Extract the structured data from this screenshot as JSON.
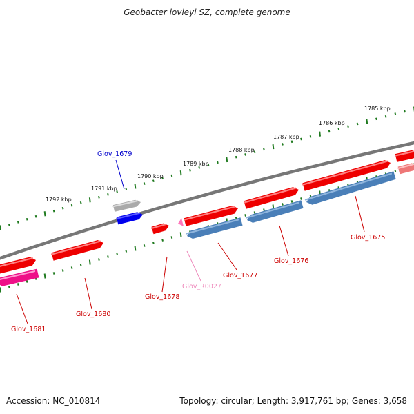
{
  "title": "Geobacter lovleyi SZ, complete genome",
  "footer": {
    "accession": "Accession: NC_010814",
    "summary": "Topology: circular; Length: 3,917,761 bp; Genes: 3,658"
  },
  "colors": {
    "backbone": "#777777",
    "tick": "#1f7a1f",
    "forward_gene": "#ee0000",
    "reverse_gene": "#4a7fb8",
    "pseudo_gene": "#aaaaaa",
    "selected_gene": "#0000ee",
    "rna_gene": "#ff77bb",
    "other_gene": "#ee1188",
    "label_default": "#cc0000",
    "label_blue": "#0000cc",
    "label_pink": "#ee88bb"
  },
  "scale": {
    "kbp_labels": [
      "1785 kbp",
      "1786 kbp",
      "1787 kbp",
      "1788 kbp",
      "1789 kbp",
      "1790 kbp",
      "1791 kbp",
      "1792 kbp"
    ]
  },
  "genes": [
    {
      "label": "Glov_1675",
      "color": "label_default"
    },
    {
      "label": "Glov_1676",
      "color": "label_default"
    },
    {
      "label": "Glov_1677",
      "color": "label_default"
    },
    {
      "label": "Glov_R0027",
      "color": "label_pink"
    },
    {
      "label": "Glov_1678",
      "color": "label_default"
    },
    {
      "label": "Glov_1679",
      "color": "label_blue"
    },
    {
      "label": "Glov_1680",
      "color": "label_default"
    },
    {
      "label": "Glov_1681",
      "color": "label_default"
    }
  ]
}
